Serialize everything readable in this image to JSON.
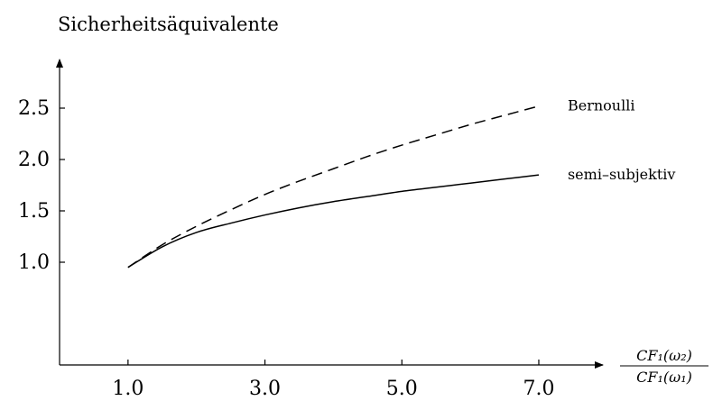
{
  "chart_data": {
    "type": "line",
    "title": "Sicherheitsäquivalente",
    "xlabel_numerator": "CF₁(ω₂)",
    "xlabel_denominator": "CF₁(ω₁)",
    "ylabel": "",
    "x_ticks": [
      "1.0",
      "3.0",
      "5.0",
      "7.0"
    ],
    "y_ticks": [
      "1.0",
      "1.5",
      "2.0",
      "2.5"
    ],
    "xlim": [
      0.0,
      7.8
    ],
    "ylim": [
      0.0,
      3.0
    ],
    "grid": false,
    "series": [
      {
        "name": "Bernoulli",
        "style": "dashed",
        "x": [
          1.0,
          1.5,
          2.0,
          2.5,
          3.0,
          3.5,
          4.0,
          4.5,
          5.0,
          5.5,
          6.0,
          6.5,
          7.0
        ],
        "y": [
          0.95,
          1.17,
          1.35,
          1.51,
          1.66,
          1.79,
          1.91,
          2.03,
          2.14,
          2.24,
          2.34,
          2.43,
          2.52
        ]
      },
      {
        "name": "semi–subjektiv",
        "style": "solid",
        "x": [
          1.0,
          1.5,
          2.0,
          2.5,
          3.0,
          3.5,
          4.0,
          4.5,
          5.0,
          5.5,
          6.0,
          6.5,
          7.0
        ],
        "y": [
          0.95,
          1.15,
          1.29,
          1.38,
          1.46,
          1.53,
          1.59,
          1.64,
          1.69,
          1.73,
          1.77,
          1.81,
          1.85
        ]
      }
    ]
  }
}
